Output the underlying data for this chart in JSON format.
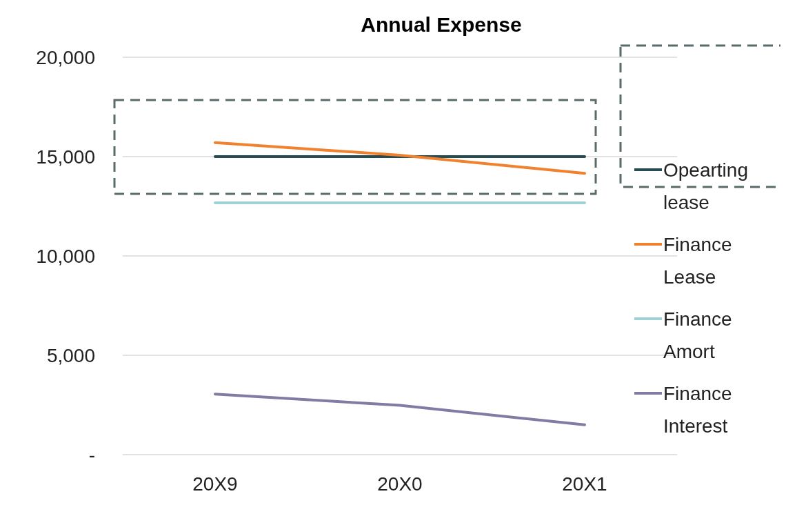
{
  "chart_data": {
    "type": "line",
    "title": "Annual Expense",
    "categories": [
      "20X9",
      "20X0",
      "20X1"
    ],
    "series": [
      {
        "name": "Opearting lease",
        "color": "#264b50",
        "values": [
          15000,
          15000,
          15000
        ]
      },
      {
        "name": "Finance Lease",
        "color": "#f0822f",
        "values": [
          15700,
          15070,
          14160
        ]
      },
      {
        "name": "Finance Amort",
        "color": "#9fd3d6",
        "values": [
          12670,
          12670,
          12670
        ]
      },
      {
        "name": "Finance Interest",
        "color": "#827ba4",
        "values": [
          3050,
          2480,
          1500
        ]
      }
    ],
    "ylim": [
      0,
      20000
    ],
    "yticks": [
      {
        "value": 0,
        "label": "-"
      },
      {
        "value": 5000,
        "label": "5,000"
      },
      {
        "value": 10000,
        "label": "10,000"
      },
      {
        "value": 15000,
        "label": "15,000"
      },
      {
        "value": 20000,
        "label": "20,000"
      }
    ],
    "grid": "y",
    "legend": "right",
    "marker": "none",
    "line_style": "solid"
  }
}
